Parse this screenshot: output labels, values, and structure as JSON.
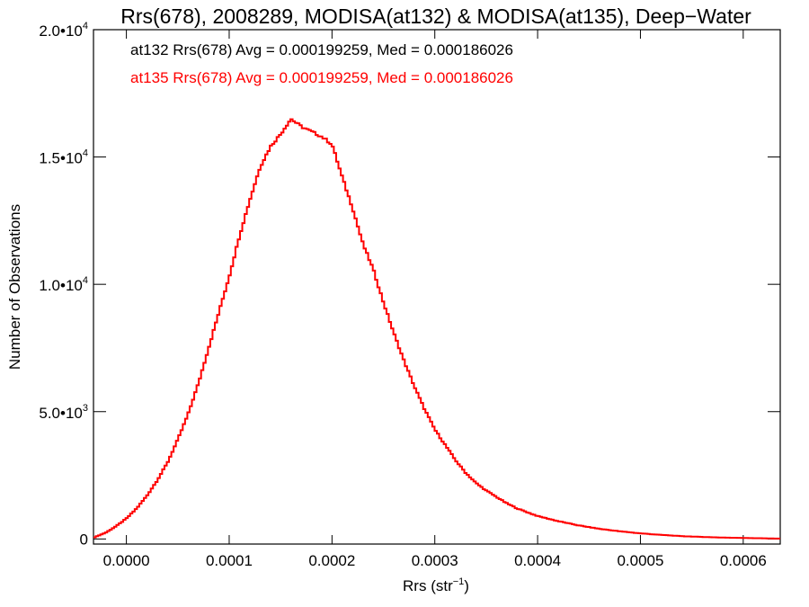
{
  "colors": {
    "axes": "#000000",
    "series_black": "#000000",
    "series_red": "#ff0000"
  },
  "chart_data": {
    "type": "line",
    "step_histogram": true,
    "title": "Rrs(678), 2008289, MODISA(at132) & MODISA(at135), Deep−Water",
    "xlabel_base": "Rrs (str",
    "xlabel_sup": "−1",
    "xlabel_tail": ")",
    "ylabel": "Number of Observations",
    "xlim": [
      -3.2e-05,
      0.000636
    ],
    "ylim": [
      -200,
      20000
    ],
    "x_ticks": [
      {
        "value": 0.0,
        "label": "0.0000"
      },
      {
        "value": 0.0001,
        "label": "0.0001"
      },
      {
        "value": 0.0002,
        "label": "0.0002"
      },
      {
        "value": 0.0003,
        "label": "0.0003"
      },
      {
        "value": 0.0004,
        "label": "0.0004"
      },
      {
        "value": 0.0005,
        "label": "0.0005"
      },
      {
        "value": 0.0006,
        "label": "0.0006"
      }
    ],
    "y_ticks": [
      {
        "value": 0,
        "mant": "0",
        "exp": ""
      },
      {
        "value": 5000,
        "mant": "5.0•10",
        "exp": "3"
      },
      {
        "value": 10000,
        "mant": "1.0•10",
        "exp": "4"
      },
      {
        "value": 15000,
        "mant": "1.5•10",
        "exp": "4"
      },
      {
        "value": 20000,
        "mant": "2.0•10",
        "exp": "4"
      }
    ],
    "annotations": [
      {
        "text": "at132 Rrs(678) Avg = 0.000199259, Med = 0.000186026",
        "color": "#000000"
      },
      {
        "text": "at135 Rrs(678) Avg = 0.000199259, Med = 0.000186026",
        "color": "#ff0000"
      }
    ],
    "series": [
      {
        "color": "#ff0000",
        "points": [
          [
            -3.2e-05,
            50
          ],
          [
            -2e-05,
            250
          ],
          [
            -1e-05,
            500
          ],
          [
            0.0,
            800
          ],
          [
            1e-05,
            1200
          ],
          [
            2e-05,
            1700
          ],
          [
            3e-05,
            2300
          ],
          [
            4e-05,
            3000
          ],
          [
            5e-05,
            3900
          ],
          [
            6e-05,
            4900
          ],
          [
            7e-05,
            6100
          ],
          [
            8e-05,
            7500
          ],
          [
            9e-05,
            8900
          ],
          [
            0.0001,
            10300
          ],
          [
            0.00011,
            11900
          ],
          [
            0.00012,
            13300
          ],
          [
            0.00013,
            14600
          ],
          [
            0.00014,
            15400
          ],
          [
            0.00015,
            15900
          ],
          [
            0.00016,
            16500
          ],
          [
            0.00017,
            16200
          ],
          [
            0.00018,
            16000
          ],
          [
            0.00019,
            15800
          ],
          [
            0.0002,
            15500
          ],
          [
            0.00021,
            14200
          ],
          [
            0.00022,
            13000
          ],
          [
            0.00023,
            11600
          ],
          [
            0.00024,
            10600
          ],
          [
            0.00025,
            9300
          ],
          [
            0.00026,
            8100
          ],
          [
            0.00027,
            7000
          ],
          [
            0.00028,
            6000
          ],
          [
            0.00029,
            5100
          ],
          [
            0.0003,
            4300
          ],
          [
            0.00031,
            3700
          ],
          [
            0.00032,
            3100
          ],
          [
            0.00033,
            2600
          ],
          [
            0.00034,
            2200
          ],
          [
            0.00035,
            1900
          ],
          [
            0.00036,
            1650
          ],
          [
            0.00037,
            1400
          ],
          [
            0.00038,
            1200
          ],
          [
            0.00039,
            1050
          ],
          [
            0.0004,
            900
          ],
          [
            0.00042,
            700
          ],
          [
            0.00044,
            530
          ],
          [
            0.00046,
            400
          ],
          [
            0.00048,
            300
          ],
          [
            0.0005,
            220
          ],
          [
            0.00052,
            160
          ],
          [
            0.00054,
            110
          ],
          [
            0.00056,
            80
          ],
          [
            0.00058,
            55
          ],
          [
            0.0006,
            40
          ],
          [
            0.00062,
            25
          ],
          [
            0.000636,
            15
          ]
        ]
      }
    ]
  }
}
